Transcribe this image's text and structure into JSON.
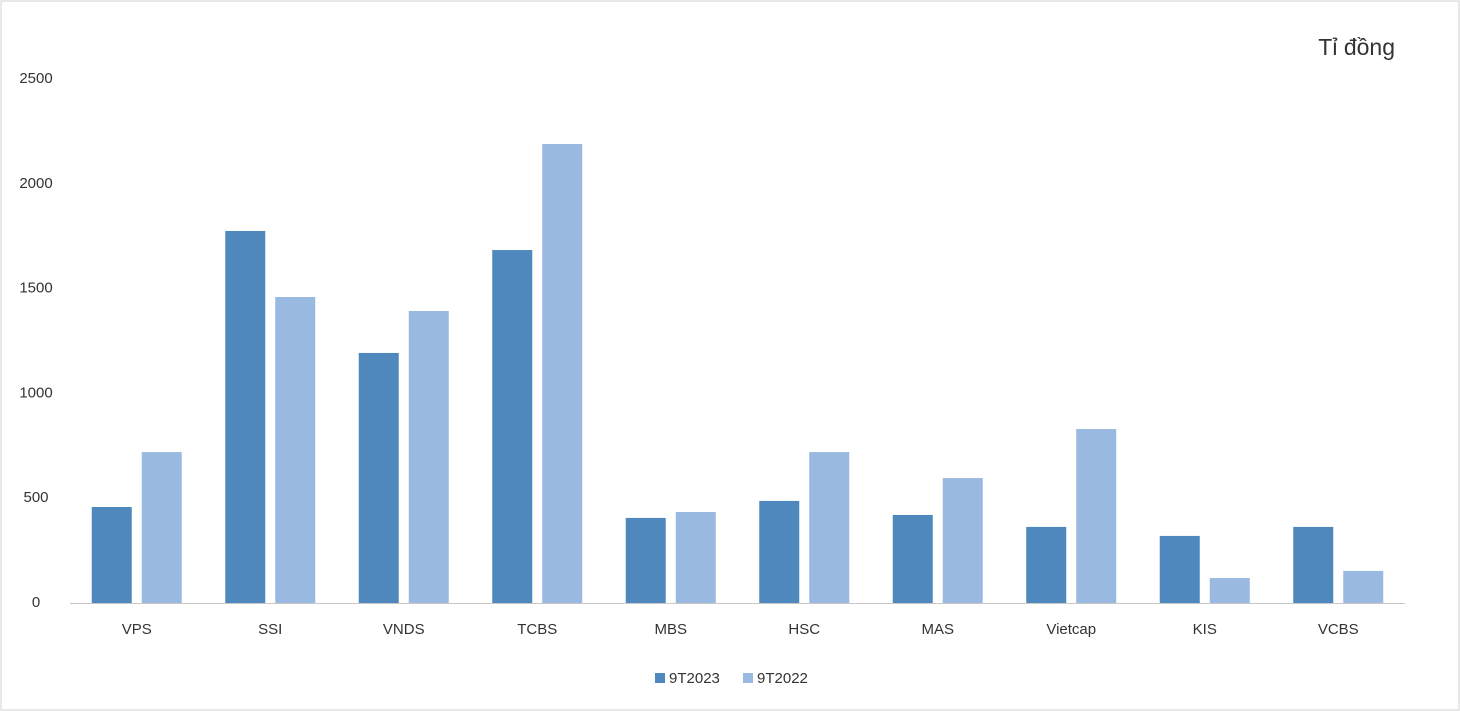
{
  "chart_data": {
    "type": "bar",
    "annotation": "Tỉ đồng",
    "categories": [
      "VPS",
      "SSI",
      "VNDS",
      "TCBS",
      "MBS",
      "HSC",
      "MAS",
      "Vietcap",
      "KIS",
      "VCBS"
    ],
    "series": [
      {
        "name": "9T2023",
        "color": "#4f88bd",
        "values": [
          458,
          1775,
          1193,
          1684,
          406,
          487,
          420,
          363,
          320,
          363
        ]
      },
      {
        "name": "9T2022",
        "color": "#99b9e0",
        "values": [
          720,
          1460,
          1393,
          2190,
          434,
          720,
          596,
          830,
          119,
          153
        ]
      }
    ],
    "ylim": [
      0,
      2500
    ],
    "yticks": [
      0,
      500,
      1000,
      1500,
      2000,
      2500
    ],
    "grid": false,
    "legend": "bottom"
  }
}
